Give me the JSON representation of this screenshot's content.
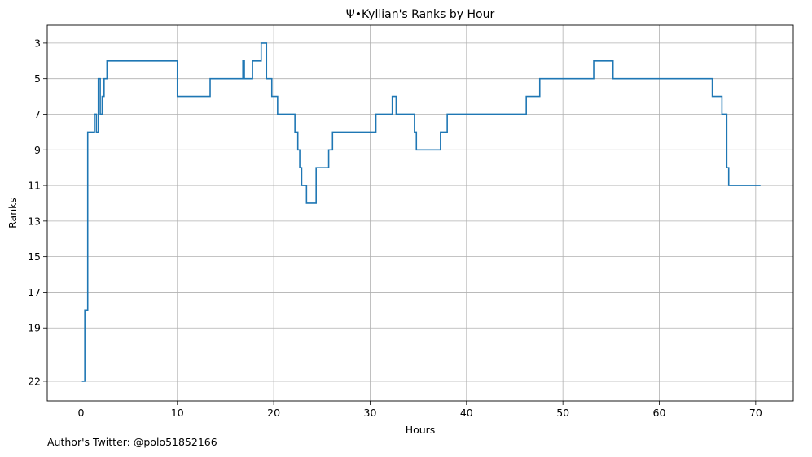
{
  "footnote": "Author's Twitter: @polo51852166",
  "chart_data": {
    "type": "line",
    "step": "post",
    "title": "Ψ•Kyllian's Ranks by Hour",
    "xlabel": "Hours",
    "ylabel": "Ranks",
    "xlim": [
      -3.5,
      73.9
    ],
    "ylim": [
      23.1,
      2.0
    ],
    "y_inverted": true,
    "grid": true,
    "line_color": "#1f77b4",
    "xticks": [
      0,
      10,
      20,
      30,
      40,
      50,
      60,
      70
    ],
    "xtick_labels": [
      "0",
      "10",
      "20",
      "30",
      "40",
      "50",
      "60",
      "70"
    ],
    "yticks": [
      3,
      5,
      7,
      9,
      11,
      13,
      15,
      17,
      19,
      22
    ],
    "ytick_labels": [
      "3",
      "5",
      "7",
      "9",
      "11",
      "13",
      "15",
      "17",
      "19",
      "22"
    ],
    "x": [
      0.1,
      0.4,
      0.7,
      1.4,
      1.6,
      1.8,
      2.0,
      2.2,
      2.4,
      2.7,
      3.2,
      10.0,
      13.4,
      16.8,
      16.95,
      17.2,
      17.8,
      18.7,
      19.25,
      19.8,
      20.4,
      22.2,
      22.5,
      22.7,
      22.9,
      23.4,
      24.4,
      25.7,
      26.1,
      30.6,
      32.3,
      32.7,
      34.6,
      34.8,
      37.3,
      38.0,
      46.2,
      47.6,
      53.2,
      55.2,
      65.5,
      66.5,
      67.0,
      67.2,
      70.5
    ],
    "values": [
      22,
      18,
      8,
      7,
      8,
      5,
      7,
      6,
      5,
      4,
      4,
      6,
      5,
      4,
      5,
      5,
      4,
      3,
      5,
      6,
      7,
      8,
      9,
      10,
      11,
      12,
      10,
      9,
      8,
      7,
      6,
      7,
      8,
      9,
      8,
      7,
      6,
      5,
      4,
      5,
      6,
      7,
      10,
      11,
      11
    ]
  }
}
